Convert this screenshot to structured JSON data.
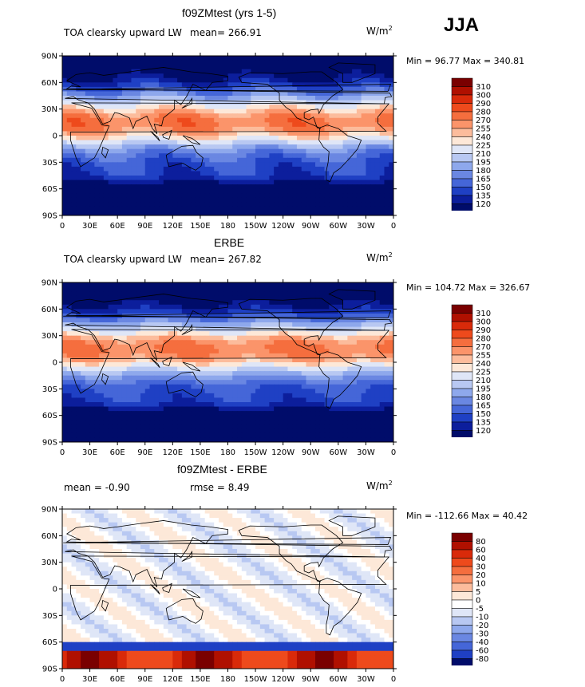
{
  "season": "JJA",
  "units_label": "W/m",
  "units_exp": "2",
  "lat_labels": [
    "90N",
    "60N",
    "30N",
    "0",
    "30S",
    "60S",
    "90S"
  ],
  "lon_labels": [
    "0",
    "30E",
    "60E",
    "90E",
    "120E",
    "150E",
    "180",
    "150W",
    "120W",
    "90W",
    "60W",
    "30W",
    "0"
  ],
  "panels": [
    {
      "title": "f09ZMtest (yrs 1-5)",
      "left_text": "TOA clearsky upward LW",
      "stat_text": "mean= 266.91",
      "min": "96.77",
      "max": "340.81",
      "minmax_text": "Min =  96.77 Max = 340.81",
      "levels": [
        "310",
        "300",
        "290",
        "280",
        "270",
        "255",
        "240",
        "225",
        "210",
        "195",
        "180",
        "165",
        "150",
        "135",
        "120"
      ],
      "colors": [
        "#7a0000",
        "#b01000",
        "#d92a0a",
        "#ee4a1c",
        "#f56e3e",
        "#fb946a",
        "#fcbc9c",
        "#fde8d8",
        "#dfe6f7",
        "#b8c8f2",
        "#8ea8ec",
        "#6a87e2",
        "#4566d8",
        "#1f40c4",
        "#0c1e9c",
        "#000c6a"
      ],
      "bias": 0.0
    },
    {
      "title": "ERBE",
      "left_text": "TOA clearsky upward LW",
      "stat_text": "mean= 267.82",
      "min": "104.72",
      "max": "326.67",
      "minmax_text": "Min = 104.72 Max = 326.67",
      "levels": [
        "310",
        "300",
        "290",
        "280",
        "270",
        "255",
        "240",
        "225",
        "210",
        "195",
        "180",
        "165",
        "150",
        "135",
        "120"
      ],
      "colors": [
        "#7a0000",
        "#b01000",
        "#d92a0a",
        "#ee4a1c",
        "#f56e3e",
        "#fb946a",
        "#fcbc9c",
        "#fde8d8",
        "#dfe6f7",
        "#b8c8f2",
        "#8ea8ec",
        "#6a87e2",
        "#4566d8",
        "#1f40c4",
        "#0c1e9c",
        "#000c6a"
      ],
      "bias": 0.0
    },
    {
      "title": "f09ZMtest - ERBE",
      "left_text": "mean =  -0.90",
      "stat_text": "rmse =   8.49",
      "min": "-112.66",
      "max": "40.42",
      "minmax_text": "Min = -112.66 Max =  40.42",
      "levels": [
        "80",
        "60",
        "40",
        "30",
        "20",
        "10",
        "5",
        "0",
        "-5",
        "-10",
        "-20",
        "-30",
        "-40",
        "-60",
        "-80"
      ],
      "colors": [
        "#7a0000",
        "#b01000",
        "#d92a0a",
        "#ee4a1c",
        "#f56e3e",
        "#fb946a",
        "#fcbc9c",
        "#fde8d8",
        "#ffffff",
        "#dfe6f7",
        "#b8c8f2",
        "#8ea8ec",
        "#6a87e2",
        "#4566d8",
        "#1f40c4",
        "#000c6a"
      ],
      "bias": 0.0
    }
  ]
}
